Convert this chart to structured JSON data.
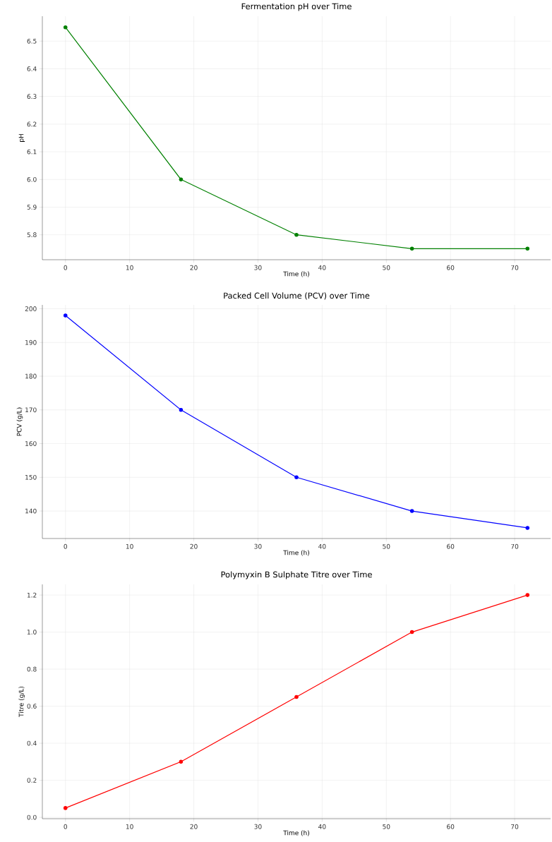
{
  "chart_data": [
    {
      "type": "line",
      "title": "Fermentation pH over Time",
      "xlabel": "Time (h)",
      "ylabel": "pH",
      "x": [
        0,
        18,
        36,
        54,
        72
      ],
      "series": [
        {
          "color": "#008000",
          "values": [
            6.55,
            6.0,
            5.8,
            5.75,
            5.75
          ]
        }
      ],
      "xlim": [
        -3.6,
        75.6
      ],
      "ylim": [
        5.71,
        6.59
      ],
      "xticks": [
        0,
        10,
        20,
        30,
        40,
        50,
        60,
        70
      ],
      "yticks": [
        5.8,
        5.9,
        {
          "value": 6.0,
          "label": "6.0"
        },
        6.1,
        6.2,
        6.3,
        6.4,
        6.5
      ],
      "grid": true,
      "marker": "circle"
    },
    {
      "type": "line",
      "title": "Packed Cell Volume (PCV) over Time",
      "xlabel": "Time (h)",
      "ylabel": "PCV (g/L)",
      "x": [
        0,
        18,
        36,
        54,
        72
      ],
      "series": [
        {
          "color": "#0000ff",
          "values": [
            198,
            170,
            150,
            140,
            135
          ]
        }
      ],
      "xlim": [
        -3.6,
        75.6
      ],
      "ylim": [
        131.85,
        201.15
      ],
      "xticks": [
        0,
        10,
        20,
        30,
        40,
        50,
        60,
        70
      ],
      "yticks": [
        140,
        150,
        160,
        170,
        180,
        190,
        200
      ],
      "grid": true,
      "marker": "circle"
    },
    {
      "type": "line",
      "title": "Polymyxin B Sulphate Titre over Time",
      "xlabel": "Time (h)",
      "ylabel": "Titre (g/L)",
      "x": [
        0,
        18,
        36,
        54,
        72
      ],
      "series": [
        {
          "color": "#ff0000",
          "values": [
            0.05,
            0.3,
            0.65,
            1.0,
            1.2
          ]
        }
      ],
      "xlim": [
        -3.6,
        75.6
      ],
      "ylim": [
        -0.0075,
        1.2575
      ],
      "xticks": [
        0,
        10,
        20,
        30,
        40,
        50,
        60,
        70
      ],
      "yticks": [
        {
          "value": 0,
          "label": "0.0"
        },
        0.2,
        0.4,
        0.6,
        0.8,
        {
          "value": 1,
          "label": "1.0"
        },
        1.2
      ],
      "grid": true,
      "marker": "circle"
    }
  ]
}
